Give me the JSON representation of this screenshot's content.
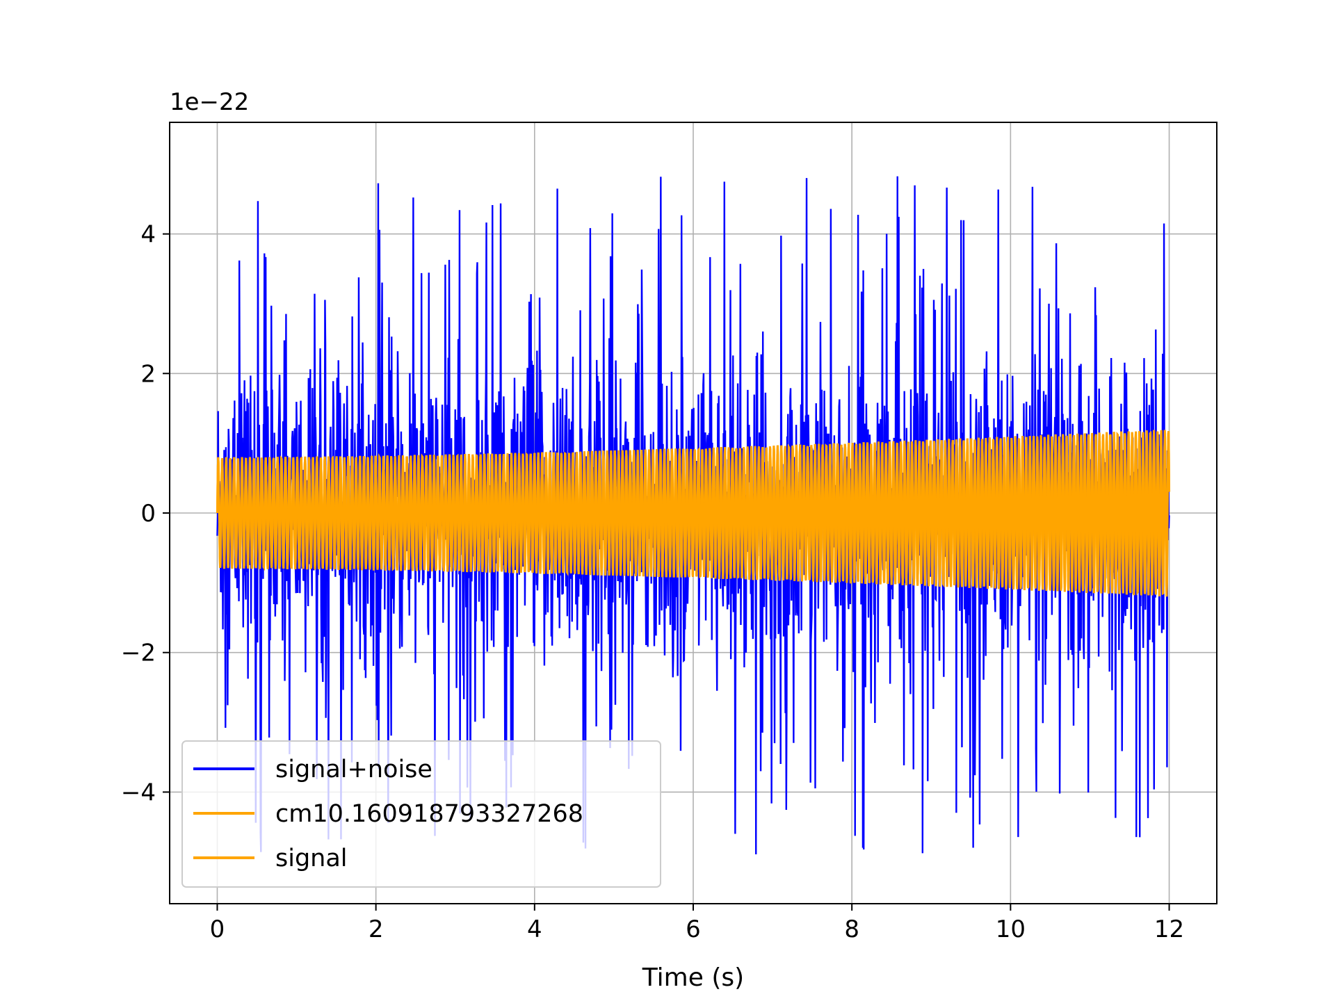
{
  "chart_data": {
    "type": "line",
    "title": "",
    "xlabel": "Time (s)",
    "ylabel": "",
    "y_scale_offset": "1e−22",
    "xlim": [
      -0.6,
      12.6
    ],
    "ylim": [
      -5.6,
      5.6
    ],
    "x_ticks": [
      0,
      2,
      4,
      6,
      8,
      10,
      12
    ],
    "x_tick_labels": [
      "0",
      "2",
      "4",
      "6",
      "8",
      "10",
      "12"
    ],
    "y_ticks": [
      -4,
      -2,
      0,
      2,
      4
    ],
    "y_tick_labels": [
      "−4",
      "−2",
      "0",
      "2",
      "4"
    ],
    "grid": true,
    "legend_position": "lower-left",
    "series": [
      {
        "name": "signal+noise",
        "color": "#0000ff",
        "x_range": [
          0,
          12
        ],
        "typical_envelope": [
          -2.5,
          2.5
        ],
        "extreme_range": [
          -5.2,
          5.15
        ]
      },
      {
        "name": "cm10.160918793327268",
        "color": "#ffa500",
        "x_range": [
          0,
          12
        ],
        "envelope_start": 0.8,
        "envelope_end": 1.2
      },
      {
        "name": "signal",
        "color": "#ffa500",
        "x_range": [
          0,
          12
        ],
        "envelope_start": 0.8,
        "envelope_end": 1.2
      }
    ]
  }
}
